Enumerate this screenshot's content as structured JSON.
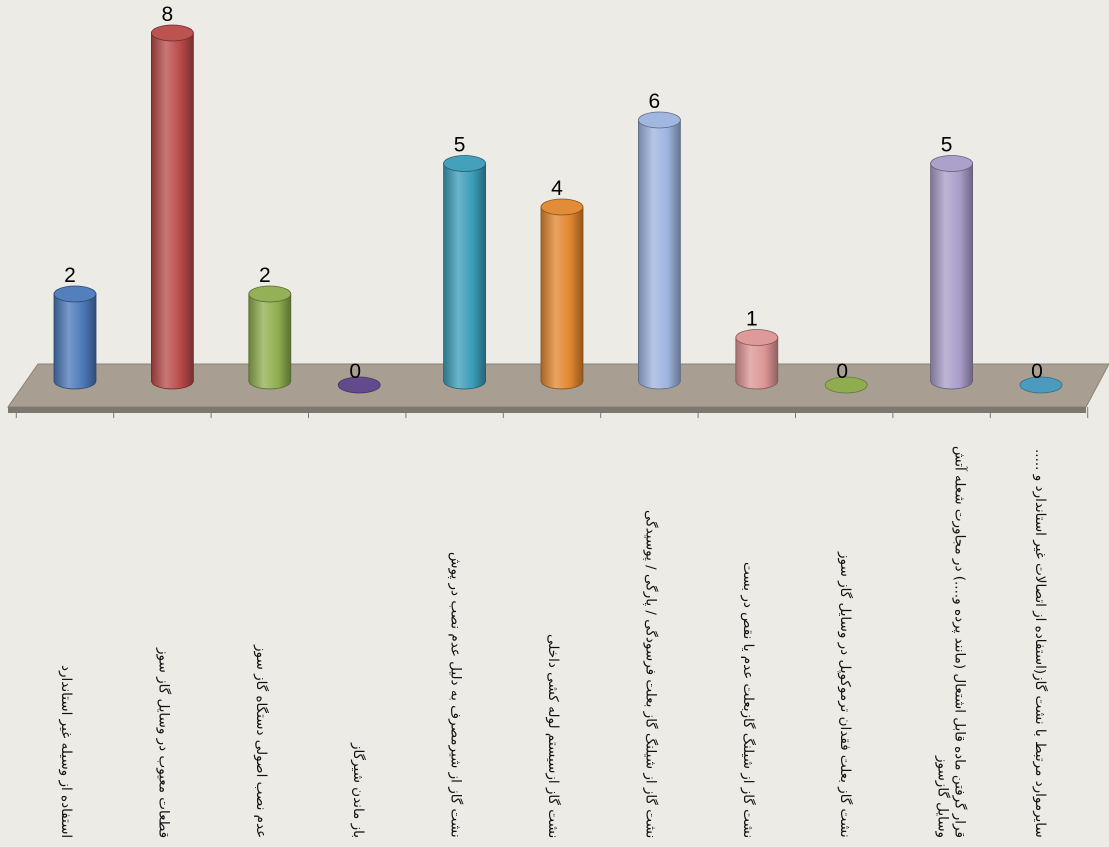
{
  "chart_data": {
    "type": "bar",
    "style": "3d-cylinder",
    "categories": [
      "استفاده از وسیله غیر استاندارد",
      "قطعات معیوب در وسایل گاز سوز",
      "عدم نصب اصولی دستگاه گاز سوز",
      "باز ماندن شیرگاز",
      "نشت گاز از شیرمصرف به دلیل عدم نصب در پوش",
      "نشت گاز ازسیستم لوله کشی داخلی",
      "نشت گاز از شیلنگ گاز بعلت فرسودگی / پارگی / پوسیدگی",
      "نشت گاز از شیلنگ گازبعلت عدم یا نقص در بست",
      "نشت گاز بعلت فقدان ترموکوپل در وسایل گاز سوز",
      "قرار گرفتن ماده قابل اشتعال (مانند پرده و....) در مجاورت شعله آتش وسایل گازسوز",
      "سایرموارد مرتبط با نشت گاز(استفاده از اتصالات غیر استاندارد و ....."
    ],
    "values": [
      2,
      8,
      2,
      0,
      5,
      4,
      6,
      1,
      0,
      5,
      0
    ],
    "colors": [
      "#4a78b8",
      "#b84a48",
      "#8fad4e",
      "#634a8c",
      "#3a9cb8",
      "#e0862e",
      "#9db3de",
      "#dc9494",
      "#8fad4e",
      "#a89cc8",
      "#4a9bbd"
    ],
    "floor_color": "#a89f92",
    "grid": false,
    "legend": "none",
    "title": "",
    "xlabel": "",
    "ylabel": ""
  }
}
